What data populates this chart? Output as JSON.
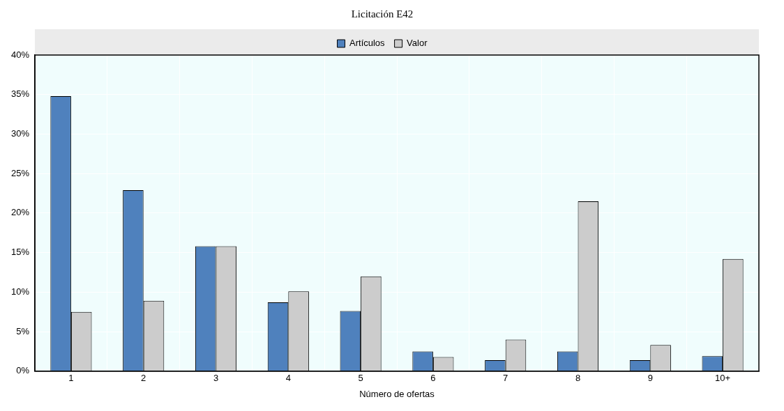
{
  "chart_data": {
    "type": "bar",
    "title": "Licitación E42",
    "xlabel": "Número de ofertas",
    "categories": [
      "1",
      "2",
      "3",
      "4",
      "5",
      "6",
      "7",
      "8",
      "9",
      "10+"
    ],
    "series": [
      {
        "name": "Artículos",
        "color": "#4f81bd",
        "values": [
          34.8,
          22.9,
          15.8,
          8.7,
          7.6,
          2.5,
          1.4,
          2.5,
          1.4,
          1.9
        ]
      },
      {
        "name": "Valor",
        "color": "#cccccc",
        "values": [
          7.5,
          8.9,
          15.8,
          10.1,
          12.0,
          1.8,
          4.0,
          21.5,
          3.3,
          14.2
        ]
      }
    ],
    "ylim": [
      0,
      40
    ],
    "yticks": [
      {
        "value": 0,
        "label": "0%"
      },
      {
        "value": 5,
        "label": "5%"
      },
      {
        "value": 10,
        "label": "10%"
      },
      {
        "value": 15,
        "label": "15%"
      },
      {
        "value": 20,
        "label": "20%"
      },
      {
        "value": 25,
        "label": "25%"
      },
      {
        "value": 30,
        "label": "30%"
      },
      {
        "value": 35,
        "label": "35%"
      },
      {
        "value": 40,
        "label": "40%"
      }
    ],
    "grid": true,
    "legend": "top"
  }
}
